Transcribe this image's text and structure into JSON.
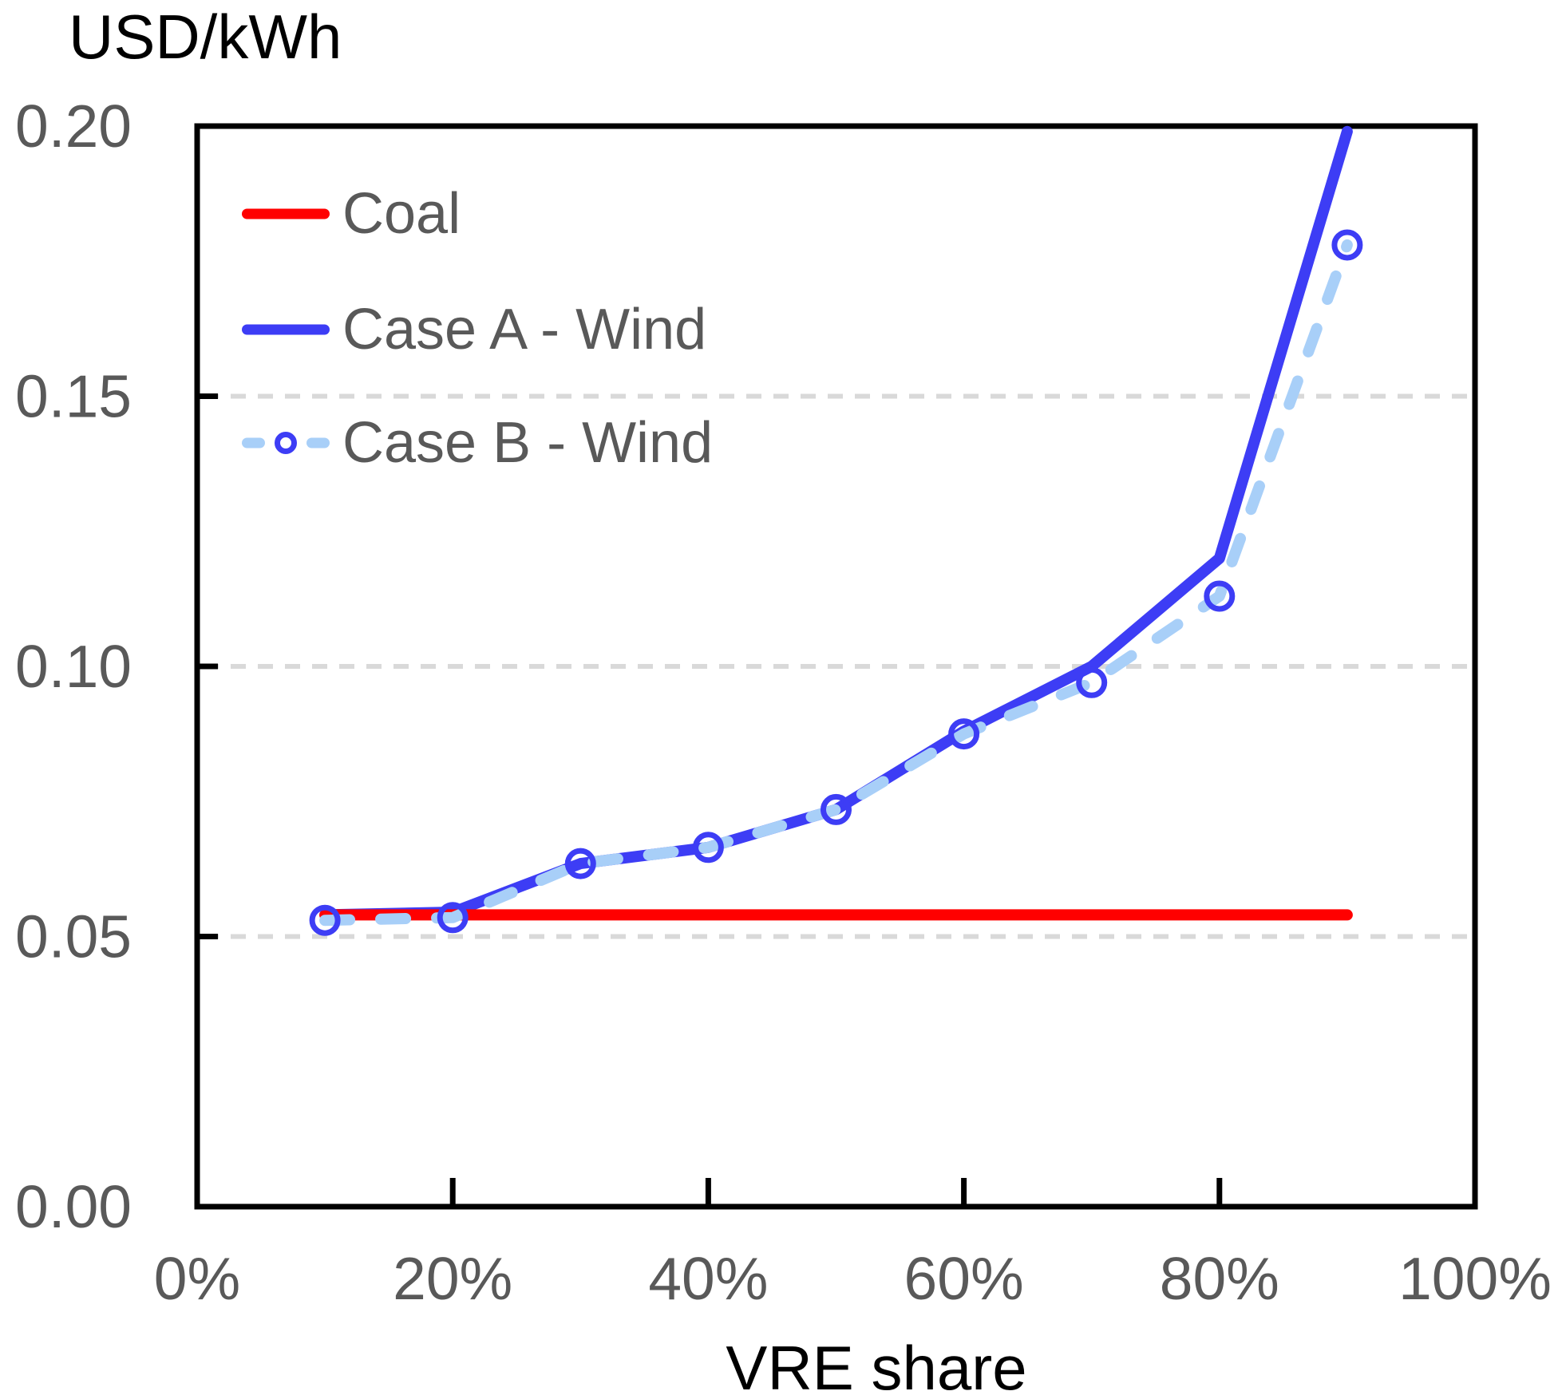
{
  "header": {
    "y_axis_title": "USD/kWh"
  },
  "x_axis": {
    "title": "VRE share"
  },
  "colors": {
    "coal": "#ff0000",
    "case_a": "#3d3df5",
    "case_b": "#a8cff8",
    "marker_stroke": "#3d3df5",
    "grid": "#d9d9d9",
    "tick_text": "#595959",
    "axis": "#000000"
  },
  "chart_data": {
    "type": "line",
    "title": "",
    "ylabel": "USD/kWh",
    "xlabel": "VRE share",
    "x": [
      10,
      20,
      30,
      40,
      50,
      60,
      70,
      80,
      90
    ],
    "series": [
      {
        "name": "Coal",
        "color": "#ff0000",
        "line_style": "solid",
        "marker": "none",
        "values": [
          0.054,
          0.054,
          0.054,
          0.054,
          0.054,
          0.054,
          0.054,
          0.054,
          0.054
        ]
      },
      {
        "name": "Case A - Wind",
        "color": "#3d3df5",
        "line_style": "solid",
        "marker": "none",
        "values": [
          0.054,
          0.0545,
          0.0635,
          0.0665,
          0.0735,
          0.088,
          0.1,
          0.12,
          0.199
        ]
      },
      {
        "name": "Case B - Wind",
        "color": "#a8cff8",
        "line_style": "dashed",
        "marker": "circle",
        "marker_color": "#3d3df5",
        "values": [
          0.053,
          0.0535,
          0.0635,
          0.0665,
          0.0735,
          0.0875,
          0.097,
          0.113,
          0.178
        ]
      }
    ],
    "xlim": [
      0,
      100
    ],
    "ylim": [
      0,
      0.2
    ],
    "x_ticks": [
      0,
      20,
      40,
      60,
      80,
      100
    ],
    "x_tick_labels": [
      "0%",
      "20%",
      "40%",
      "60%",
      "80%",
      "100%"
    ],
    "y_ticks": [
      0,
      0.05,
      0.1,
      0.15,
      0.2
    ],
    "y_tick_labels": [
      "0.00",
      "0.05",
      "0.10",
      "0.15",
      "0.20"
    ],
    "grid": {
      "horizontal_at": [
        0.05,
        0.1,
        0.15
      ],
      "style": "dashed"
    },
    "legend": {
      "position": "top-left-inside",
      "entries": [
        "Coal",
        "Case A - Wind",
        "Case B - Wind"
      ]
    }
  }
}
